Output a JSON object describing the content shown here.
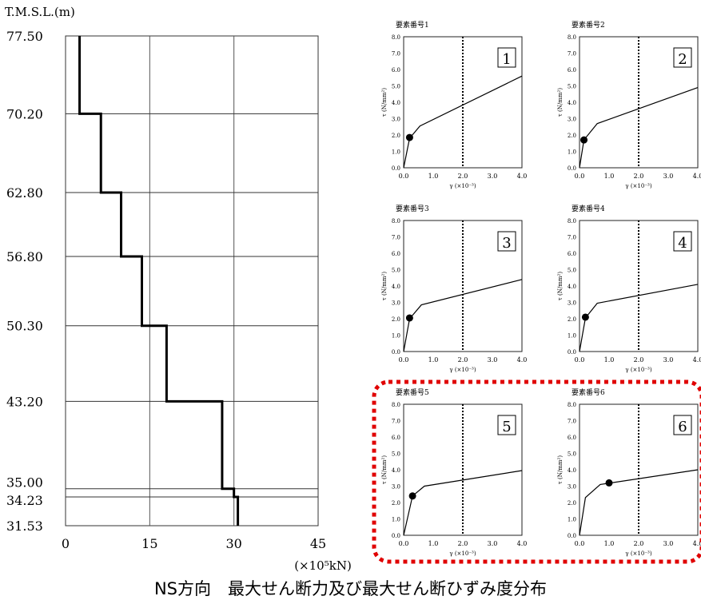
{
  "caption": "NS方向　最大せん断力及び最大せん断ひずみ度分布",
  "chart_data": [
    {
      "type": "line",
      "ylabel": "T.M.S.L.(m)",
      "xlabel": "(×10⁵kN)",
      "xticks": [
        "0",
        "15",
        "30",
        "45"
      ],
      "xlim": [
        0,
        45
      ],
      "elevations": [
        77.5,
        70.2,
        62.8,
        56.8,
        50.3,
        43.2,
        35.0,
        34.23,
        31.53
      ],
      "elevation_labels": [
        "77.50",
        "70.20",
        "62.80",
        "56.80",
        "50.30",
        "43.20",
        "35.00",
        "34.23",
        "31.53"
      ],
      "shear": [
        2.5,
        6.3,
        9.9,
        13.6,
        18.0,
        27.9,
        30.0,
        30.7
      ],
      "grid": true
    },
    {
      "type": "scatter",
      "panels": [
        {
          "title": "要素番号1",
          "number": "1",
          "curve": [
            [
              0,
              0
            ],
            [
              0.2,
              1.8
            ],
            [
              0.55,
              2.55
            ],
            [
              4.0,
              5.6
            ]
          ],
          "point": [
            0.2,
            1.85
          ]
        },
        {
          "title": "要素番号2",
          "number": "2",
          "curve": [
            [
              0,
              0
            ],
            [
              0.15,
              1.7
            ],
            [
              0.6,
              2.7
            ],
            [
              4.0,
              4.9
            ]
          ],
          "point": [
            0.15,
            1.7
          ]
        },
        {
          "title": "要素番号3",
          "number": "3",
          "curve": [
            [
              0,
              0
            ],
            [
              0.2,
              2.0
            ],
            [
              0.6,
              2.85
            ],
            [
              4.0,
              4.4
            ]
          ],
          "point": [
            0.2,
            2.05
          ]
        },
        {
          "title": "要素番号4",
          "number": "4",
          "curve": [
            [
              0,
              0
            ],
            [
              0.2,
              2.05
            ],
            [
              0.6,
              2.95
            ],
            [
              4.0,
              4.1
            ]
          ],
          "point": [
            0.2,
            2.1
          ]
        },
        {
          "title": "要素番号5",
          "number": "5",
          "curve": [
            [
              0,
              0
            ],
            [
              0.3,
              2.4
            ],
            [
              0.7,
              3.0
            ],
            [
              4.0,
              3.95
            ]
          ],
          "point": [
            0.3,
            2.4
          ]
        },
        {
          "title": "要素番号6",
          "number": "6",
          "curve": [
            [
              0,
              0
            ],
            [
              0.2,
              2.3
            ],
            [
              0.7,
              3.1
            ],
            [
              4.0,
              4.0
            ]
          ],
          "point": [
            1.0,
            3.2
          ]
        }
      ],
      "xlabel": "γ (×10⁻³)",
      "ylabel": "τ (N/mm²)",
      "xticks": [
        "0.0",
        "1.0",
        "2.0",
        "3.0",
        "4.0"
      ],
      "yticks": [
        "0.0",
        "1.0",
        "2.0",
        "3.0",
        "4.0",
        "5.0",
        "6.0",
        "7.0",
        "8.0"
      ],
      "xlim": [
        0,
        4.0
      ],
      "ylim": [
        0,
        8.0
      ],
      "reference_gamma": 2.0,
      "highlight_color": "#e00000"
    }
  ]
}
